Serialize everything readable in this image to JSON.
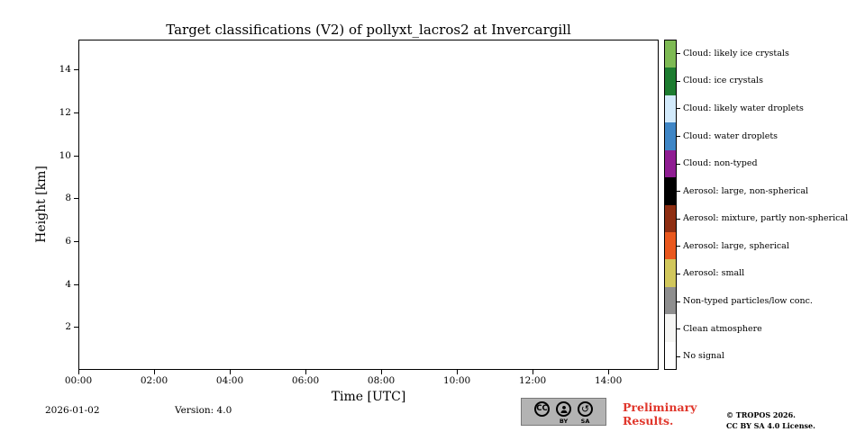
{
  "chart_data": {
    "type": "heatmap",
    "title": "Target classifications (V2) of pollyxt_lacros2 at Invercargill",
    "xlabel": "Time [UTC]",
    "ylabel": "Height [km]",
    "x_tick_labels": [
      "00:00",
      "02:00",
      "04:00",
      "06:00",
      "08:00",
      "10:00",
      "12:00",
      "14:00"
    ],
    "x_tick_hours": [
      0,
      2,
      4,
      6,
      8,
      10,
      12,
      14
    ],
    "xlim_hours": [
      0,
      15.33
    ],
    "y_tick_labels": [
      "2",
      "4",
      "6",
      "8",
      "10",
      "12",
      "14"
    ],
    "y_tick_values": [
      2,
      4,
      6,
      8,
      10,
      12,
      14
    ],
    "ylim": [
      0,
      15.4
    ],
    "grid": false,
    "values": [],
    "data_note": "Plot area is empty - no classification pixels rendered",
    "legend_position": "right-colorbar",
    "classes": [
      {
        "label": "Cloud: likely ice crystals",
        "color": "#7eba54"
      },
      {
        "label": "Cloud: ice crystals",
        "color": "#1d7c30"
      },
      {
        "label": "Cloud: likely water droplets",
        "color": "#d2eafb"
      },
      {
        "label": "Cloud: water droplets",
        "color": "#3f86c6"
      },
      {
        "label": "Cloud: non-typed",
        "color": "#8f1d92"
      },
      {
        "label": "Aerosol: large, non-spherical",
        "color": "#000000"
      },
      {
        "label": "Aerosol: mixture, partly non-spherical",
        "color": "#8e2e12"
      },
      {
        "label": "Aerosol: large, spherical",
        "color": "#e9581e"
      },
      {
        "label": "Aerosol: small",
        "color": "#d1c75c"
      },
      {
        "label": "Non-typed particles/low conc.",
        "color": "#8e8e8e"
      },
      {
        "label": "Clean atmosphere",
        "color": "#f6f6f4"
      },
      {
        "label": "No signal",
        "color": "#ffffff"
      }
    ]
  },
  "footer": {
    "date": "2026-01-02",
    "version": "Version: 4.0",
    "preliminary": "Preliminary Results.",
    "copyright": "© TROPOS 2026.",
    "license": "CC BY SA 4.0 License.",
    "cc_badge": {
      "cc": "CC",
      "by": "BY",
      "sa": "SA"
    }
  }
}
